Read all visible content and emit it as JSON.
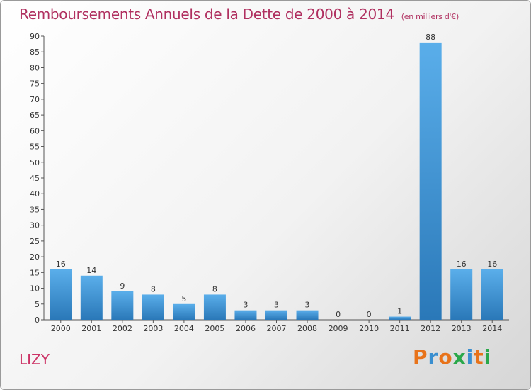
{
  "city": "LIZY",
  "logo": "Proxiti",
  "colors": {
    "title": "#b03060",
    "bar_light": "#5aaeea",
    "bar_dark": "#2a78b8",
    "logo_letters": [
      "#e8731a",
      "#3a8fd0",
      "#e8731a",
      "#2aa84a",
      "#3a8fd0",
      "#e8731a",
      "#2aa84a"
    ]
  },
  "chart_data": {
    "type": "bar",
    "title": "Remboursements Annuels de la Dette de 2000 à 2014",
    "subtitle": "(en milliers d'€)",
    "categories": [
      "2000",
      "2001",
      "2002",
      "2003",
      "2004",
      "2005",
      "2006",
      "2007",
      "2008",
      "2009",
      "2010",
      "2011",
      "2012",
      "2013",
      "2014"
    ],
    "values": [
      16,
      14,
      9,
      8,
      5,
      8,
      3,
      3,
      3,
      0,
      0,
      1,
      88,
      16,
      16
    ],
    "ylim": [
      0,
      90
    ],
    "yticks": [
      0,
      5,
      10,
      15,
      20,
      25,
      30,
      35,
      40,
      45,
      50,
      55,
      60,
      65,
      70,
      75,
      80,
      85,
      90
    ],
    "grid": false,
    "legend": "none"
  }
}
